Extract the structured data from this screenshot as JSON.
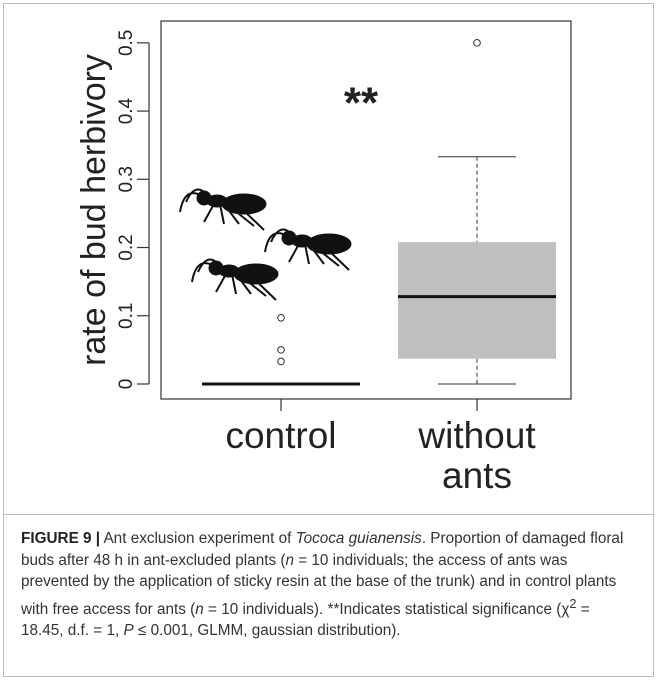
{
  "chart_data": {
    "type": "box",
    "y_label": "rate of bud herbivory",
    "annotation": "**",
    "categories": [
      "control",
      "without ants"
    ],
    "boxes": [
      {
        "min": 0,
        "q1": 0,
        "median": 0,
        "q3": 0,
        "max": 0,
        "outliers": [
          0.097,
          0.05,
          0.033
        ]
      },
      {
        "min": 0,
        "q1": 0.037,
        "median": 0.128,
        "q3": 0.208,
        "max": 0.333,
        "outliers": [
          0.5
        ]
      }
    ],
    "color": "#c0c0c0",
    "ylim": [
      -0.022,
      0.532
    ],
    "yticks": [
      0,
      0.1,
      0.2,
      0.3,
      0.4,
      0.5
    ]
  },
  "caption": [
    "FIGURE 9 |",
    " Ant exclusion experiment of ",
    "Tococa guianensis",
    ". Proportion of damaged floral buds after 48 h in ant-excluded plants (",
    "n",
    " = 10 individuals; the access of ants was prevented by the application of sticky resin at the base of the trunk) and in control plants with free access for ants (",
    "n",
    " = 10 individuals). **Indicates statistical significance (χ",
    "2",
    " = 18.45, d.f. = 1, ",
    "P",
    " ≤ 0.001, GLMM, gaussian distribution)."
  ]
}
